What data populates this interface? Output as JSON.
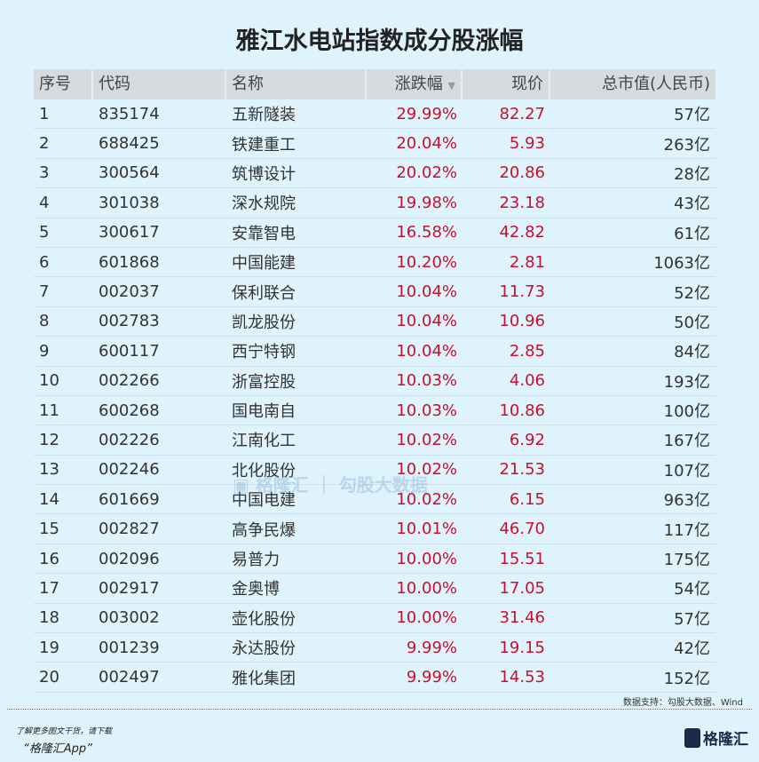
{
  "title": "雅江水电站指数成分股涨幅",
  "headers": [
    "序号",
    "代码",
    "名称",
    "涨跌幅",
    "现价",
    "总市值(人民币)"
  ],
  "sort_icon": "triangle-down-icon",
  "rows": [
    [
      "1",
      "835174",
      "五新隧装",
      "29.99%",
      "82.27",
      "57亿"
    ],
    [
      "2",
      "688425",
      "铁建重工",
      "20.04%",
      "5.93",
      "263亿"
    ],
    [
      "3",
      "300564",
      "筑博设计",
      "20.02%",
      "20.86",
      "28亿"
    ],
    [
      "4",
      "301038",
      "深水规院",
      "19.98%",
      "23.18",
      "43亿"
    ],
    [
      "5",
      "300617",
      "安靠智电",
      "16.58%",
      "42.82",
      "61亿"
    ],
    [
      "6",
      "601868",
      "中国能建",
      "10.20%",
      "2.81",
      "1063亿"
    ],
    [
      "7",
      "002037",
      "保利联合",
      "10.04%",
      "11.73",
      "52亿"
    ],
    [
      "8",
      "002783",
      "凯龙股份",
      "10.04%",
      "10.96",
      "50亿"
    ],
    [
      "9",
      "600117",
      "西宁特钢",
      "10.04%",
      "2.85",
      "84亿"
    ],
    [
      "10",
      "002266",
      "浙富控股",
      "10.03%",
      "4.06",
      "193亿"
    ],
    [
      "11",
      "600268",
      "国电南自",
      "10.03%",
      "10.86",
      "100亿"
    ],
    [
      "12",
      "002226",
      "江南化工",
      "10.02%",
      "6.92",
      "167亿"
    ],
    [
      "13",
      "002246",
      "北化股份",
      "10.02%",
      "21.53",
      "107亿"
    ],
    [
      "14",
      "601669",
      "中国电建",
      "10.02%",
      "6.15",
      "963亿"
    ],
    [
      "15",
      "002827",
      "高争民爆",
      "10.01%",
      "46.70",
      "117亿"
    ],
    [
      "16",
      "002096",
      "易普力",
      "10.00%",
      "15.51",
      "175亿"
    ],
    [
      "17",
      "002917",
      "金奥博",
      "10.00%",
      "17.05",
      "54亿"
    ],
    [
      "18",
      "003002",
      "壶化股份",
      "10.00%",
      "31.46",
      "57亿"
    ],
    [
      "19",
      "001239",
      "永达股份",
      "9.99%",
      "19.15",
      "42亿"
    ],
    [
      "20",
      "002497",
      "雅化集团",
      "9.99%",
      "14.53",
      "152亿"
    ]
  ],
  "colors": {
    "up": "#c8102e",
    "background": "#def3fb",
    "header_bg": "#d6dbde"
  },
  "source": "数据支持：勾股大数据、Wind",
  "watermark": "格隆汇 | 勾股大数据",
  "promo_line1": "了解更多图文干货，请下载",
  "promo_line2": "“格隆汇App”",
  "logo": "格隆汇"
}
